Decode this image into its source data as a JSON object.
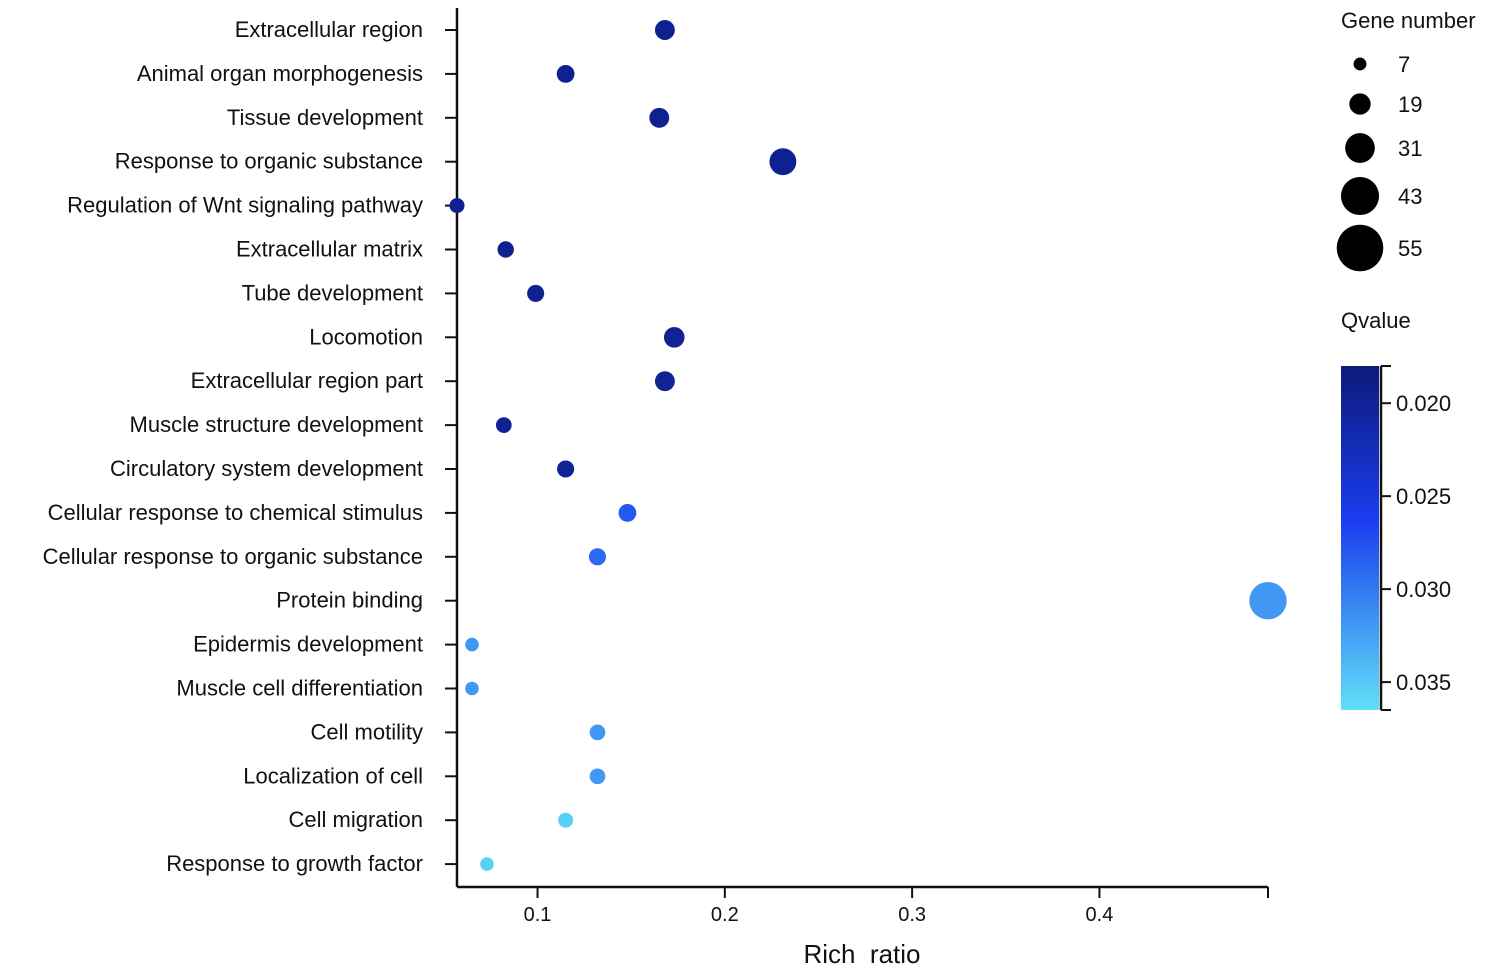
{
  "chart_data": {
    "type": "scatter",
    "title": "",
    "xlabel": "Rich  ratio",
    "ylabel": "",
    "xlim": [
      0.057,
      0.49
    ],
    "xticks": [
      0.1,
      0.2,
      0.3,
      0.4
    ],
    "xtick_labels": [
      "0.1",
      "0.2",
      "0.3",
      "0.4"
    ],
    "categories": [
      "Extracellular region",
      "Animal organ morphogenesis",
      "Tissue development",
      "Response to organic substance",
      "Regulation of Wnt signaling pathway",
      "Extracellular matrix",
      "Tube development",
      "Locomotion",
      "Extracellular region part",
      "Muscle structure development",
      "Circulatory system development",
      "Cellular response to chemical stimulus",
      "Cellular response to organic substance",
      "Protein binding",
      "Epidermis development",
      "Muscle cell differentiation",
      "Cell motility",
      "Localization of cell",
      "Cell migration",
      "Response to growth factor"
    ],
    "points": [
      {
        "term": "Extracellular region",
        "rich_ratio": 0.168,
        "gene_number": 17,
        "qvalue": 0.0195
      },
      {
        "term": "Animal organ morphogenesis",
        "rich_ratio": 0.115,
        "gene_number": 14,
        "qvalue": 0.0195
      },
      {
        "term": "Tissue development",
        "rich_ratio": 0.165,
        "gene_number": 17,
        "qvalue": 0.0196
      },
      {
        "term": "Response to organic substance",
        "rich_ratio": 0.231,
        "gene_number": 27,
        "qvalue": 0.0196
      },
      {
        "term": "Regulation of Wnt signaling pathway",
        "rich_ratio": 0.057,
        "gene_number": 10,
        "qvalue": 0.0196
      },
      {
        "term": "Extracellular matrix",
        "rich_ratio": 0.083,
        "gene_number": 12,
        "qvalue": 0.0196
      },
      {
        "term": "Tube development",
        "rich_ratio": 0.099,
        "gene_number": 13,
        "qvalue": 0.0197
      },
      {
        "term": "Locomotion",
        "rich_ratio": 0.173,
        "gene_number": 18,
        "qvalue": 0.0198
      },
      {
        "term": "Extracellular region part",
        "rich_ratio": 0.168,
        "gene_number": 17,
        "qvalue": 0.0198
      },
      {
        "term": "Muscle structure development",
        "rich_ratio": 0.082,
        "gene_number": 11,
        "qvalue": 0.0198
      },
      {
        "term": "Circulatory system development",
        "rich_ratio": 0.115,
        "gene_number": 13,
        "qvalue": 0.0198
      },
      {
        "term": "Cellular response to chemical stimulus",
        "rich_ratio": 0.148,
        "gene_number": 14,
        "qvalue": 0.028
      },
      {
        "term": "Cellular response to organic substance",
        "rich_ratio": 0.132,
        "gene_number": 13,
        "qvalue": 0.029
      },
      {
        "term": "Protein binding",
        "rich_ratio": 0.49,
        "gene_number": 42,
        "qvalue": 0.032
      },
      {
        "term": "Epidermis development",
        "rich_ratio": 0.065,
        "gene_number": 8,
        "qvalue": 0.032
      },
      {
        "term": "Muscle cell differentiation",
        "rich_ratio": 0.065,
        "gene_number": 8,
        "qvalue": 0.032
      },
      {
        "term": "Cell motility",
        "rich_ratio": 0.132,
        "gene_number": 11,
        "qvalue": 0.032
      },
      {
        "term": "Localization of cell",
        "rich_ratio": 0.132,
        "gene_number": 11,
        "qvalue": 0.032
      },
      {
        "term": "Cell migration",
        "rich_ratio": 0.115,
        "gene_number": 10,
        "qvalue": 0.0355
      },
      {
        "term": "Response to growth factor",
        "rich_ratio": 0.073,
        "gene_number": 8,
        "qvalue": 0.0355
      }
    ],
    "size_legend": {
      "title": "Gene number",
      "values": [
        7,
        19,
        31,
        43,
        55
      ],
      "labels": [
        "7",
        "19",
        "31",
        "43",
        "55"
      ]
    },
    "color_legend": {
      "title": "Qvalue",
      "range": [
        0.018,
        0.0365
      ],
      "ticks": [
        0.02,
        0.025,
        0.03,
        0.035
      ],
      "tick_labels": [
        "0.020",
        "0.025",
        "0.030",
        "0.035"
      ],
      "low_color": "#0d1a7a",
      "mid_color": "#1a3df0",
      "high_color": "#5ee0f7"
    }
  }
}
